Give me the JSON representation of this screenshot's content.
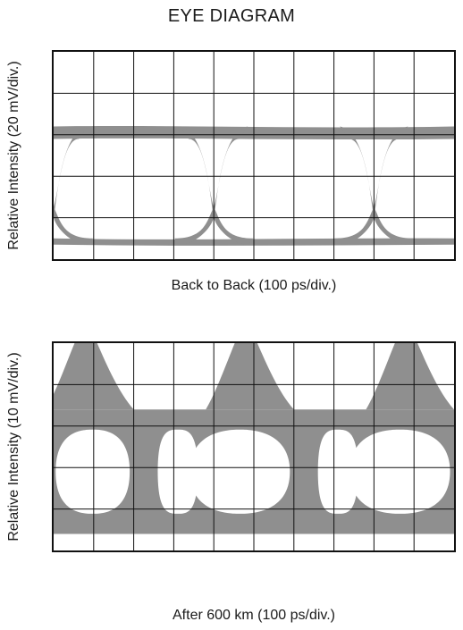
{
  "title": "EYE DIAGRAM",
  "chart_data": [
    {
      "type": "eye-diagram",
      "xlabel": "Back to Back (100 ps/div.)",
      "ylabel": "Relative Intensity (20 mV/div.)",
      "divisions": {
        "x": 10,
        "y": 5
      },
      "grid": true,
      "trace_color": "#8f8f8f",
      "unit_interval_div": 4,
      "crossing_points_div": [
        0,
        4,
        8
      ],
      "high_level_div": [
        2.9,
        3.2
      ],
      "low_level_div": [
        0.35,
        0.5
      ],
      "crossing_level_div": 1.0
    },
    {
      "type": "eye-diagram",
      "xlabel": "After 600 km (100 ps/div.)",
      "ylabel": "Relative Intensity (10 mV/div.)",
      "divisions": {
        "x": 10,
        "y": 5
      },
      "grid": true,
      "trace_color": "#8f8f8f",
      "unit_interval_div": 4,
      "peak_positions_div": [
        0.8,
        4.8,
        8.8
      ],
      "peak_level_div": 5.5,
      "upper_band_div": [
        3.0,
        3.4
      ],
      "lower_band_div": [
        0.4,
        0.8
      ]
    }
  ]
}
